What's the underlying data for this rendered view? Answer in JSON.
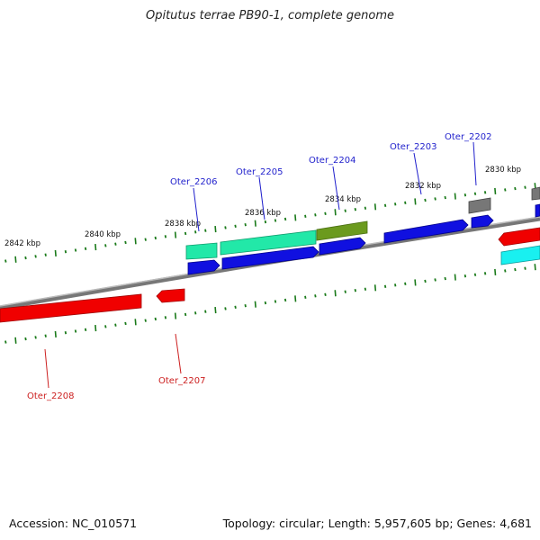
{
  "title": "Opitutus terrae PB90-1, complete genome",
  "footer": {
    "accession": "Accession: NC_010571",
    "summary": "Topology: circular; Length: 5,957,605 bp; Genes: 4,681"
  },
  "colors": {
    "backbone": "#8a8a8a",
    "tick": "#1a7a1a",
    "label_blue": "#1f1fcc",
    "label_red": "#cc1f1f",
    "feature_blue": "#1010e0",
    "feature_red": "#f00000",
    "feature_cyan": "#19f0f0",
    "feature_teal": "#22e8a8",
    "feature_olive": "#6b9a1e",
    "feature_gray": "#777777"
  },
  "ticks": [
    {
      "label": "2842 kbp"
    },
    {
      "label": "2840 kbp"
    },
    {
      "label": "2838 kbp"
    },
    {
      "label": "2836 kbp"
    },
    {
      "label": "2834 kbp"
    },
    {
      "label": "2832 kbp"
    },
    {
      "label": "2830 kbp"
    }
  ],
  "genes": [
    {
      "name": "Oter_2202",
      "strand": "forward"
    },
    {
      "name": "Oter_2203",
      "strand": "forward"
    },
    {
      "name": "Oter_2204",
      "strand": "forward"
    },
    {
      "name": "Oter_2205",
      "strand": "forward"
    },
    {
      "name": "Oter_2206",
      "strand": "forward"
    },
    {
      "name": "Oter_2207",
      "strand": "reverse"
    },
    {
      "name": "Oter_2208",
      "strand": "reverse"
    }
  ]
}
